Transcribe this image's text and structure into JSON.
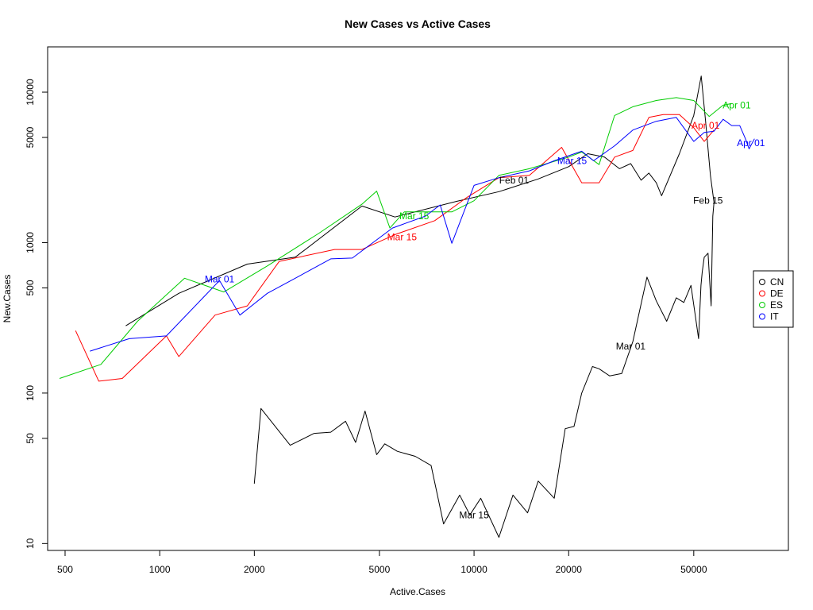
{
  "chart_data": {
    "type": "line",
    "title": "New Cases vs Active Cases",
    "xlabel": "Active.Cases",
    "ylabel": "New.Cases",
    "xscale": "log",
    "yscale": "log",
    "xlim": [
      440,
      100000
    ],
    "ylim": [
      9,
      20000
    ],
    "x_ticks": [
      500,
      1000,
      2000,
      5000,
      10000,
      20000,
      50000
    ],
    "x_tick_labels": [
      "500",
      "1000",
      "2000",
      "5000",
      "10000",
      "20000",
      "50000"
    ],
    "y_ticks": [
      10,
      50,
      100,
      500,
      1000,
      5000,
      10000
    ],
    "y_tick_labels": [
      "10",
      "50",
      "100",
      "500",
      "1000",
      "5000",
      "10000"
    ],
    "legend_position": "right",
    "series": [
      {
        "name": "CN",
        "color": "#000000",
        "points": [
          [
            780,
            280
          ],
          [
            1150,
            460
          ],
          [
            1900,
            720
          ],
          [
            2700,
            800
          ],
          [
            4400,
            1750
          ],
          [
            5600,
            1480
          ],
          [
            8800,
            1880
          ],
          [
            12000,
            2180
          ],
          [
            16000,
            2650
          ],
          [
            20000,
            3200
          ],
          [
            23000,
            3900
          ],
          [
            26000,
            3700
          ],
          [
            29000,
            3100
          ],
          [
            31500,
            3350
          ],
          [
            34000,
            2600
          ],
          [
            36000,
            2900
          ],
          [
            38000,
            2500
          ],
          [
            39500,
            2050
          ],
          [
            45000,
            3900
          ],
          [
            50000,
            7000
          ],
          [
            52800,
            12800
          ],
          [
            54500,
            6500
          ],
          [
            56500,
            2800
          ],
          [
            58000,
            1850
          ],
          [
            58000,
            1850
          ],
          [
            57500,
            1500
          ],
          [
            56800,
            380
          ],
          [
            55500,
            850
          ],
          [
            54000,
            800
          ],
          [
            53200,
            640
          ],
          [
            52700,
            520
          ],
          [
            51800,
            230
          ],
          [
            49000,
            520
          ],
          [
            46500,
            400
          ],
          [
            44000,
            430
          ],
          [
            41000,
            300
          ],
          [
            38000,
            410
          ],
          [
            35500,
            590
          ],
          [
            32000,
            220
          ],
          [
            29500,
            135
          ],
          [
            27000,
            130
          ],
          [
            25000,
            145
          ],
          [
            23800,
            150
          ],
          [
            22000,
            100
          ],
          [
            20800,
            60
          ],
          [
            19500,
            58
          ],
          [
            18000,
            20
          ],
          [
            16000,
            26
          ],
          [
            14800,
            16
          ],
          [
            13300,
            21
          ],
          [
            12000,
            11
          ],
          [
            10500,
            20
          ],
          [
            9700,
            15.5
          ],
          [
            9000,
            21
          ],
          [
            8000,
            13.5
          ],
          [
            7300,
            33
          ],
          [
            6500,
            38
          ],
          [
            5700,
            41
          ],
          [
            5200,
            46
          ],
          [
            4900,
            39
          ],
          [
            4500,
            76
          ],
          [
            4200,
            47
          ],
          [
            3900,
            65
          ],
          [
            3500,
            55
          ],
          [
            3100,
            54
          ],
          [
            2600,
            45
          ],
          [
            2100,
            79
          ],
          [
            2000,
            25
          ]
        ]
      },
      {
        "name": "DE",
        "color": "#ff0000",
        "points": [
          [
            540,
            260
          ],
          [
            640,
            120
          ],
          [
            760,
            125
          ],
          [
            1050,
            240
          ],
          [
            1150,
            175
          ],
          [
            1500,
            330
          ],
          [
            1900,
            380
          ],
          [
            2400,
            750
          ],
          [
            3600,
            900
          ],
          [
            4400,
            900
          ],
          [
            5600,
            1130
          ],
          [
            7500,
            1400
          ],
          [
            9500,
            2000
          ],
          [
            12000,
            2700
          ],
          [
            15000,
            2800
          ],
          [
            19000,
            4300
          ],
          [
            22000,
            2500
          ],
          [
            25000,
            2500
          ],
          [
            28000,
            3700
          ],
          [
            32000,
            4100
          ],
          [
            36000,
            6800
          ],
          [
            40000,
            7100
          ],
          [
            45000,
            7100
          ],
          [
            50000,
            5800
          ],
          [
            54000,
            4700
          ],
          [
            58000,
            5600
          ]
        ]
      },
      {
        "name": "ES",
        "color": "#00cc00",
        "points": [
          [
            480,
            125
          ],
          [
            650,
            155
          ],
          [
            850,
            300
          ],
          [
            1200,
            580
          ],
          [
            1600,
            470
          ],
          [
            2200,
            700
          ],
          [
            3200,
            1150
          ],
          [
            4400,
            1800
          ],
          [
            4900,
            2200
          ],
          [
            5400,
            1250
          ],
          [
            6000,
            1600
          ],
          [
            8500,
            1600
          ],
          [
            10000,
            1900
          ],
          [
            12000,
            2800
          ],
          [
            15000,
            3100
          ],
          [
            20000,
            3700
          ],
          [
            22000,
            4000
          ],
          [
            25000,
            3300
          ],
          [
            28000,
            7000
          ],
          [
            32000,
            8000
          ],
          [
            38000,
            8800
          ],
          [
            44000,
            9200
          ],
          [
            50000,
            8800
          ],
          [
            56000,
            6900
          ],
          [
            62000,
            8200
          ],
          [
            66000,
            8400
          ]
        ]
      },
      {
        "name": "IT",
        "color": "#0000ff",
        "points": [
          [
            600,
            190
          ],
          [
            800,
            230
          ],
          [
            1050,
            240
          ],
          [
            1550,
            560
          ],
          [
            1800,
            330
          ],
          [
            2200,
            460
          ],
          [
            2700,
            580
          ],
          [
            3500,
            780
          ],
          [
            4100,
            790
          ],
          [
            5500,
            1250
          ],
          [
            7000,
            1500
          ],
          [
            7800,
            1780
          ],
          [
            8500,
            990
          ],
          [
            10000,
            2400
          ],
          [
            12000,
            2700
          ],
          [
            15000,
            3000
          ],
          [
            18000,
            3500
          ],
          [
            22000,
            4050
          ],
          [
            24000,
            3500
          ],
          [
            28000,
            4400
          ],
          [
            32000,
            5600
          ],
          [
            38000,
            6400
          ],
          [
            44000,
            6800
          ],
          [
            50000,
            4700
          ],
          [
            54000,
            5400
          ],
          [
            58000,
            5500
          ],
          [
            62000,
            6600
          ],
          [
            66000,
            6000
          ],
          [
            70000,
            6000
          ],
          [
            73000,
            4900
          ],
          [
            75000,
            4200
          ],
          [
            78000,
            4900
          ]
        ]
      }
    ],
    "annotations": [
      {
        "text": "Mar 01",
        "x": 1550,
        "y": 570,
        "color": "#0000ff"
      },
      {
        "text": "Mar 15",
        "x": 6450,
        "y": 1500,
        "color": "#00cc00"
      },
      {
        "text": "Mar 15",
        "x": 5900,
        "y": 1090,
        "color": "#ff0000"
      },
      {
        "text": "Feb 01",
        "x": 13400,
        "y": 2600,
        "color": "#000000"
      },
      {
        "text": "Mar 15",
        "x": 20500,
        "y": 3500,
        "color": "#0000ff"
      },
      {
        "text": "Apr 01",
        "x": 54500,
        "y": 6000,
        "color": "#ff0000"
      },
      {
        "text": "Apr 01",
        "x": 68500,
        "y": 8200,
        "color": "#00cc00"
      },
      {
        "text": "Apr 01",
        "x": 76000,
        "y": 4600,
        "color": "#0000ff"
      },
      {
        "text": "Feb 15",
        "x": 55500,
        "y": 1900,
        "color": "#000000"
      },
      {
        "text": "Mar 01",
        "x": 31500,
        "y": 205,
        "color": "#000000"
      },
      {
        "text": "Mar 15",
        "x": 10000,
        "y": 15.5,
        "color": "#000000"
      }
    ]
  }
}
